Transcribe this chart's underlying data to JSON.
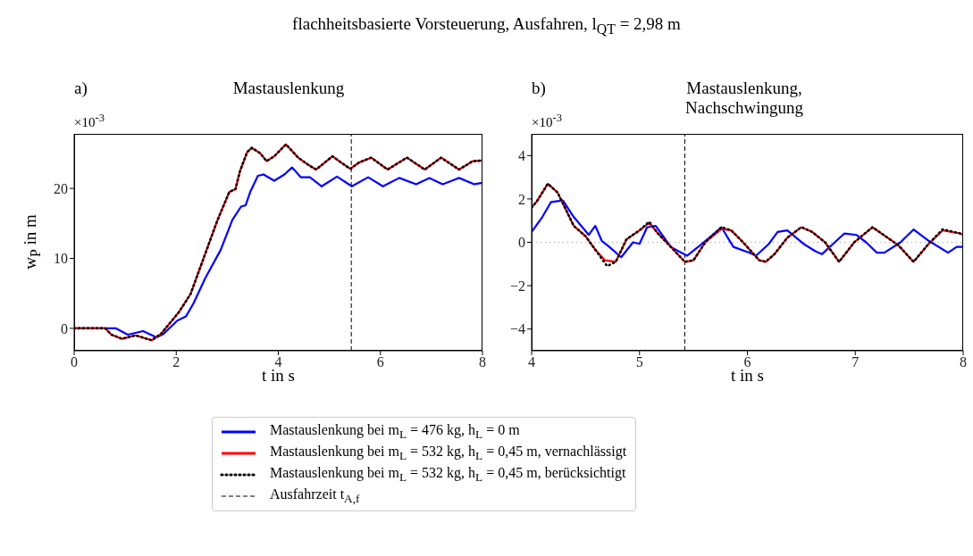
{
  "chart_data": [
    {
      "type": "line",
      "title": "Mastauslenkung",
      "xlabel": "t in s",
      "ylabel": "w$_{P}$ in m",
      "annotations": [
        "a)",
        "×10$^{-3}$",
        "flachheitsbasierte Vorsteuerung, Ausfahren, l$_{QT}$ = 2,98 m"
      ],
      "xlim": [
        0,
        8
      ],
      "xticks": [
        0,
        2,
        4,
        6,
        8
      ],
      "ylim": [
        -3.2,
        27.8
      ],
      "yticks": [
        0,
        10,
        20
      ],
      "legend": "bottom",
      "ref_lines": [
        {
          "axis": "x",
          "value": 5.43,
          "label": "Ausfahrzeit t$_{A,f}$",
          "color": "#000000",
          "line_style": "dashed"
        }
      ],
      "series": [
        {
          "name": "Mastauslenkung bei m$_{L}$ = 476 kg, h$_{L}$ = 0 m",
          "color": "#0000ff",
          "line_style": "solid",
          "x": [
            0,
            0.82,
            1.05,
            1.35,
            1.61,
            1.75,
            2.02,
            2.19,
            2.34,
            2.57,
            2.87,
            3.1,
            3.27,
            3.36,
            3.45,
            3.6,
            3.71,
            3.92,
            4.12,
            4.27,
            4.44,
            4.62,
            4.85,
            5.15,
            5.44,
            5.76,
            6.05,
            6.37,
            6.7,
            6.96,
            7.22,
            7.54,
            7.84,
            8
          ],
          "values": [
            0,
            0,
            -0.9,
            -0.4,
            -1.3,
            -0.8,
            1.1,
            1.7,
            3.6,
            7.2,
            11.2,
            15.5,
            17.4,
            17.6,
            19.5,
            21.8,
            22,
            21.1,
            22,
            23,
            21.6,
            21.6,
            20.3,
            21.7,
            20.3,
            21.6,
            20.3,
            21.5,
            20.6,
            21.5,
            20.6,
            21.5,
            20.6,
            20.8
          ]
        },
        {
          "name": "Mastauslenkung bei m$_{L}$ = 532 kg, h$_{L}$ = 0,45 m, vernachlässigt",
          "color": "#ff0000",
          "line_style": "solid",
          "x": [
            0,
            0.61,
            0.73,
            0.94,
            1.2,
            1.52,
            1.7,
            2.05,
            2.28,
            2.51,
            2.81,
            3.04,
            3.16,
            3.25,
            3.39,
            3.48,
            3.65,
            3.77,
            3.92,
            4.15,
            4.39,
            4.56,
            4.74,
            4.91,
            5.06,
            5.23,
            5.41,
            5.58,
            5.82,
            6.14,
            6.52,
            6.87,
            7.19,
            7.54,
            7.81,
            8
          ],
          "values": [
            0,
            0,
            -0.9,
            -1.5,
            -1.0,
            -1.7,
            -0.8,
            2.3,
            4.9,
            9.5,
            15.5,
            19.5,
            19.9,
            22.5,
            25.2,
            25.8,
            25,
            23.9,
            24.6,
            26.3,
            24.4,
            23.5,
            22.7,
            23.7,
            24.6,
            23.7,
            22.8,
            23.7,
            24.4,
            22.7,
            24.4,
            22.7,
            24.4,
            22.7,
            23.9,
            24
          ]
        },
        {
          "name": "Mastauslenkung bei m$_{L}$ = 532 kg, h$_{L}$ = 0,45 m, berücksichtigt",
          "color": "#000000",
          "line_style": "dotted",
          "x": [
            0,
            0.61,
            0.73,
            0.94,
            1.2,
            1.52,
            1.7,
            2.05,
            2.28,
            2.51,
            2.81,
            3.04,
            3.16,
            3.25,
            3.39,
            3.48,
            3.65,
            3.77,
            3.92,
            4.15,
            4.39,
            4.56,
            4.74,
            4.91,
            5.06,
            5.23,
            5.41,
            5.58,
            5.82,
            6.14,
            6.52,
            6.87,
            7.19,
            7.54,
            7.81,
            8
          ],
          "values": [
            0,
            0,
            -0.9,
            -1.5,
            -1.0,
            -1.7,
            -0.8,
            2.3,
            4.9,
            9.5,
            15.5,
            19.5,
            19.9,
            22.5,
            25.2,
            25.8,
            25,
            23.9,
            24.6,
            26.3,
            24.4,
            23.5,
            22.7,
            23.7,
            24.6,
            23.7,
            22.8,
            23.7,
            24.4,
            22.7,
            24.4,
            22.7,
            24.4,
            22.7,
            23.9,
            24
          ]
        }
      ]
    },
    {
      "type": "line",
      "title": "Mastauslenkung,\nNachschwingung",
      "xlabel": "t in s",
      "annotations": [
        "b)",
        "×10$^{-3}$"
      ],
      "xlim": [
        4,
        8
      ],
      "xticks": [
        4,
        5,
        6,
        7,
        8
      ],
      "ylim": [
        -5,
        5
      ],
      "yticks": [
        -4,
        -2,
        0,
        2,
        4
      ],
      "ref_lines": [
        {
          "axis": "x",
          "value": 5.42,
          "color": "#000000",
          "line_style": "dashed"
        },
        {
          "axis": "y",
          "value": 0,
          "color": "#999999",
          "line_style": "dotted"
        }
      ],
      "series": [
        {
          "color": "#0000ff",
          "line_style": "solid",
          "x": [
            4,
            4.1,
            4.18,
            4.29,
            4.39,
            4.53,
            4.59,
            4.65,
            4.72,
            4.83,
            4.94,
            5,
            5.07,
            5.15,
            5.29,
            5.44,
            5.58,
            5.76,
            5.87,
            6.02,
            6.08,
            6.2,
            6.28,
            6.37,
            6.52,
            6.63,
            6.69,
            6.9,
            7.01,
            7.1,
            7.2,
            7.27,
            7.42,
            7.54,
            7.68,
            7.86,
            7.94,
            8
          ],
          "values": [
            0.48,
            1.17,
            1.86,
            1.93,
            1.17,
            0.34,
            0.76,
            0.07,
            -0.21,
            -0.69,
            0,
            -0.07,
            0.69,
            0.76,
            -0.21,
            -0.62,
            -0.07,
            0.69,
            -0.21,
            -0.48,
            -0.62,
            -0.07,
            0.48,
            0.55,
            -0.07,
            -0.41,
            -0.55,
            0.41,
            0.34,
            0,
            -0.48,
            -0.48,
            0,
            0.59,
            0.07,
            -0.48,
            -0.21,
            -0.21
          ]
        },
        {
          "color": "#ff0000",
          "line_style": "solid",
          "x": [
            4,
            4.05,
            4.15,
            4.24,
            4.39,
            4.5,
            4.59,
            4.68,
            4.78,
            4.88,
            5,
            5.09,
            5.17,
            5.29,
            5.42,
            5.5,
            5.61,
            5.76,
            5.85,
            5.96,
            6.11,
            6.17,
            6.25,
            6.37,
            6.5,
            6.6,
            6.72,
            6.85,
            6.99,
            7.16,
            7.3,
            7.4,
            7.54,
            7.68,
            7.81,
            7.97,
            8
          ],
          "values": [
            1.6,
            1.9,
            2.7,
            2.3,
            0.76,
            0.28,
            -0.34,
            -0.83,
            -0.9,
            0.14,
            0.55,
            0.9,
            0.41,
            -0.21,
            -0.9,
            -0.83,
            0,
            0.62,
            0.55,
            0,
            -0.83,
            -0.9,
            -0.55,
            0.21,
            0.69,
            0.48,
            0,
            -0.9,
            0,
            0.69,
            0.21,
            -0.14,
            -0.9,
            -0.07,
            0.55,
            0.41,
            0.34
          ]
        },
        {
          "color": "#000000",
          "line_style": "dotted",
          "x": [
            4,
            4.05,
            4.15,
            4.24,
            4.39,
            4.5,
            4.59,
            4.7,
            4.78,
            4.88,
            5,
            5.09,
            5.17,
            5.29,
            5.42,
            5.5,
            5.61,
            5.76,
            5.85,
            5.96,
            6.11,
            6.17,
            6.25,
            6.37,
            6.5,
            6.6,
            6.72,
            6.85,
            6.99,
            7.16,
            7.3,
            7.4,
            7.54,
            7.68,
            7.81,
            7.97,
            8
          ],
          "values": [
            1.6,
            1.9,
            2.7,
            2.3,
            0.76,
            0.28,
            -0.34,
            -1.1,
            -0.9,
            0.14,
            0.55,
            0.95,
            0.41,
            -0.21,
            -0.9,
            -0.83,
            0,
            0.7,
            0.55,
            0,
            -0.83,
            -0.9,
            -0.55,
            0.21,
            0.7,
            0.48,
            0,
            -0.9,
            0,
            0.7,
            0.21,
            -0.14,
            -0.9,
            -0.07,
            0.6,
            0.41,
            0.34
          ]
        }
      ]
    }
  ]
}
